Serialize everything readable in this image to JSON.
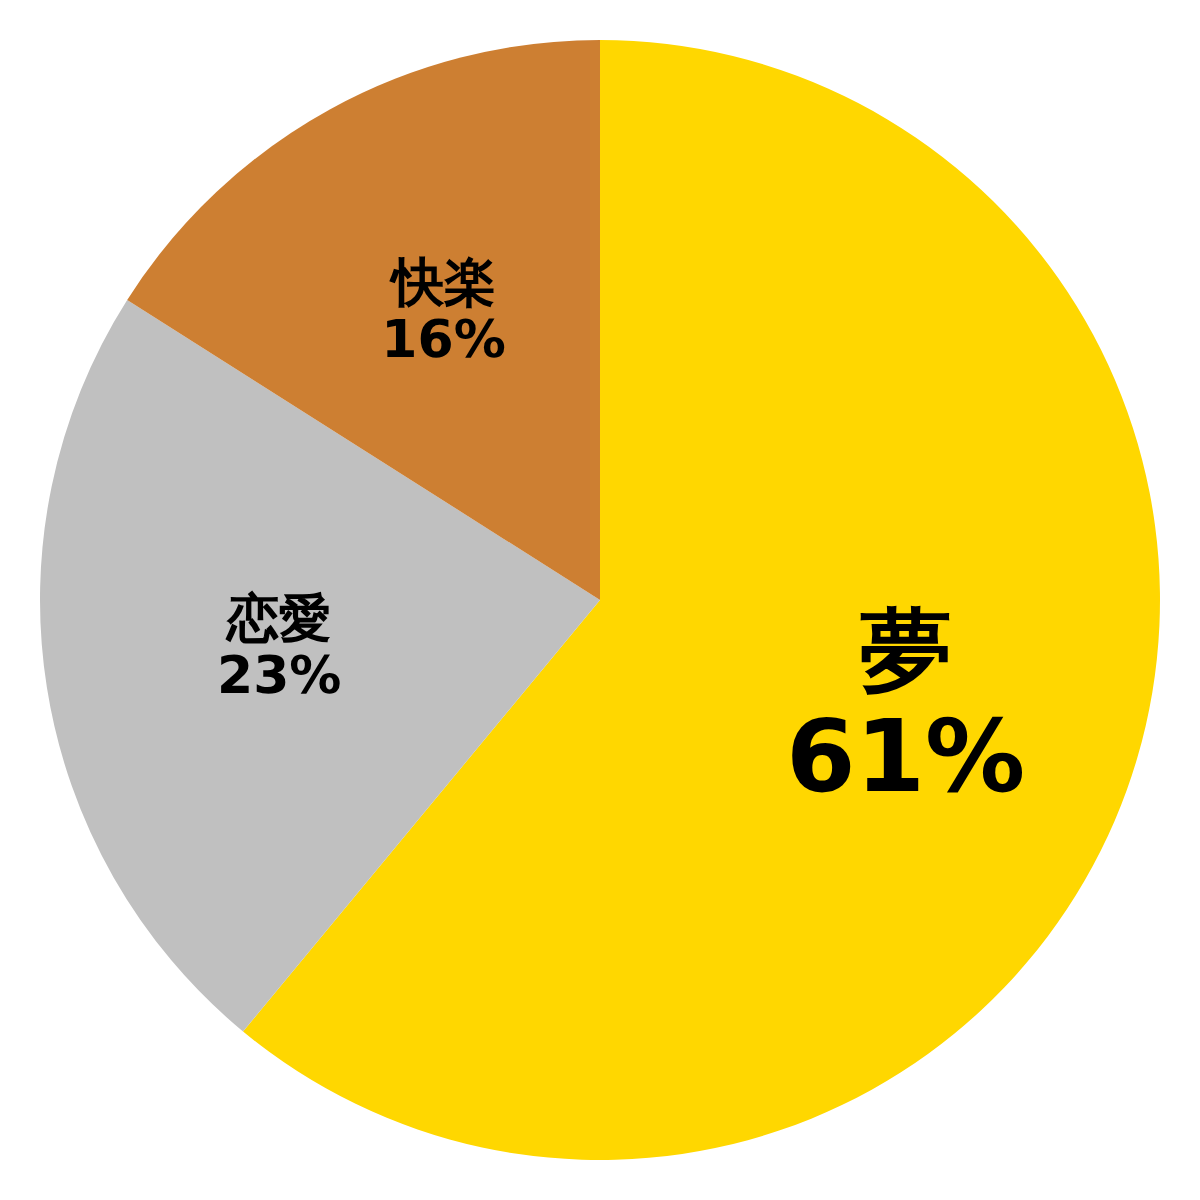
{
  "chart_data": {
    "type": "pie",
    "categories": [
      "夢",
      "恋愛",
      "快楽"
    ],
    "values": [
      61,
      23,
      16
    ],
    "colors": [
      "#ffd700",
      "#c0c0c0",
      "#cd7f32"
    ],
    "value_labels": [
      "61%",
      "23%",
      "16%"
    ],
    "legend": false
  }
}
